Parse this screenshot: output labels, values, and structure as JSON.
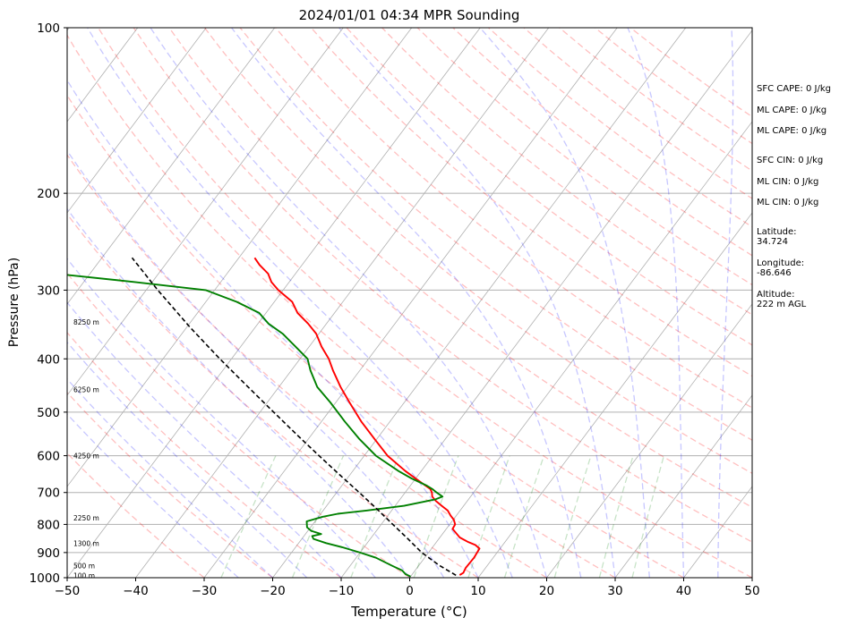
{
  "chart_data": {
    "type": "line",
    "title": "2024/01/01 04:34 MPR Sounding",
    "xlabel": "Temperature (°C)",
    "ylabel": "Pressure (hPa)",
    "xlim": [
      -50,
      50
    ],
    "ylim": [
      1000,
      100
    ],
    "y_scale": "log",
    "skew": true,
    "grid": true,
    "x_ticks": [
      -50,
      -40,
      -30,
      -20,
      -10,
      0,
      10,
      20,
      30,
      40,
      50
    ],
    "x_tick_labels": [
      "−50",
      "−40",
      "−30",
      "−20",
      "−10",
      "0",
      "10",
      "20",
      "30",
      "40",
      "50"
    ],
    "y_ticks": [
      1000,
      900,
      800,
      700,
      600,
      500,
      400,
      300,
      200,
      100
    ],
    "y_tick_labels": [
      "1000",
      "900",
      "800",
      "700",
      "600",
      "500",
      "400",
      "300",
      "200",
      "100"
    ],
    "series": [
      {
        "color": "#ff0000",
        "p": [
          989,
          980,
          960,
          920,
          885,
          872,
          860,
          845,
          830,
          815,
          800,
          785,
          770,
          755,
          740,
          725,
          712,
          700,
          690,
          680,
          640,
          600,
          560,
          520,
          480,
          450,
          420,
          400,
          380,
          360,
          345,
          330,
          315,
          300,
          290,
          280,
          270,
          262
        ],
        "t": [
          7.0,
          7.3,
          7.1,
          7.2,
          7.0,
          6.0,
          4.5,
          2.9,
          1.9,
          0.9,
          0.8,
          0.1,
          -0.9,
          -1.8,
          -3.2,
          -4.6,
          -5.6,
          -6.1,
          -6.7,
          -7.8,
          -12.3,
          -16.6,
          -20.3,
          -24.2,
          -28.0,
          -31.0,
          -33.9,
          -35.8,
          -38.2,
          -40.4,
          -42.7,
          -45.4,
          -47.4,
          -50.7,
          -52.6,
          -54.0,
          -56.2,
          -57.7
        ]
      },
      {
        "color": "#008000",
        "p": [
          995,
          985,
          970,
          950,
          920,
          900,
          880,
          865,
          850,
          840,
          833,
          822,
          810,
          790,
          775,
          765,
          755,
          740,
          720,
          712,
          700,
          690,
          680,
          660,
          640,
          600,
          560,
          520,
          480,
          450,
          420,
          400,
          380,
          360,
          345,
          330,
          315,
          300,
          290,
          282,
          270
        ],
        "td": [
          0.0,
          -1.0,
          -1.9,
          -4.0,
          -7.1,
          -10.0,
          -13.2,
          -16.0,
          -18.3,
          -18.8,
          -17.7,
          -19.5,
          -20.5,
          -21.2,
          -19.4,
          -17.5,
          -13.7,
          -8.7,
          -4.8,
          -4.1,
          -5.4,
          -6.4,
          -7.6,
          -10.6,
          -13.3,
          -18.3,
          -22.5,
          -26.6,
          -30.8,
          -34.4,
          -37.2,
          -38.9,
          -42.0,
          -45.3,
          -48.5,
          -51.0,
          -55.5,
          -61.3,
          -72.5,
          -82.5,
          -101.0
        ]
      },
      {
        "color": "#000000",
        "dash": true,
        "p": [
          990,
          950,
          900,
          850,
          800,
          750,
          700,
          650,
          600,
          550,
          500,
          450,
          400,
          350,
          300,
          262
        ],
        "t": [
          6.5,
          3.0,
          -1.0,
          -4.5,
          -8.3,
          -12.3,
          -16.7,
          -21.5,
          -26.6,
          -32.1,
          -38.0,
          -44.5,
          -51.7,
          -59.6,
          -68.3,
          -75.6
        ]
      }
    ],
    "height_labels": [
      {
        "text": "100 m",
        "p": 990
      },
      {
        "text": "500 m",
        "p": 950
      },
      {
        "text": "1300 m",
        "p": 866
      },
      {
        "text": "2250 m",
        "p": 778
      },
      {
        "text": "4250 m",
        "p": 600
      },
      {
        "text": "6250 m",
        "p": 455
      },
      {
        "text": "8250 m",
        "p": 343
      }
    ],
    "indices": [
      "SFC CAPE: 0 J/kg",
      "ML CAPE: 0 J/kg",
      "ML CAPE: 0 J/kg",
      "SFC CIN: 0 J/kg",
      "ML CIN: 0 J/kg",
      "ML CIN: 0 J/kg"
    ],
    "location": [
      {
        "label": "Latitude:",
        "value": "34.724"
      },
      {
        "label": "Longitude:",
        "value": "-86.646"
      },
      {
        "label": "Altitude:",
        "value": "222 m AGL"
      }
    ]
  },
  "colors": {
    "temperature": "#ff0000",
    "dewpoint": "#008000",
    "parcel": "#000000",
    "dry_adiabat": "#ff0000",
    "moist_adiabat": "#0000ff",
    "mixing_ratio": "#008000",
    "grid": "#b0b0b0"
  }
}
